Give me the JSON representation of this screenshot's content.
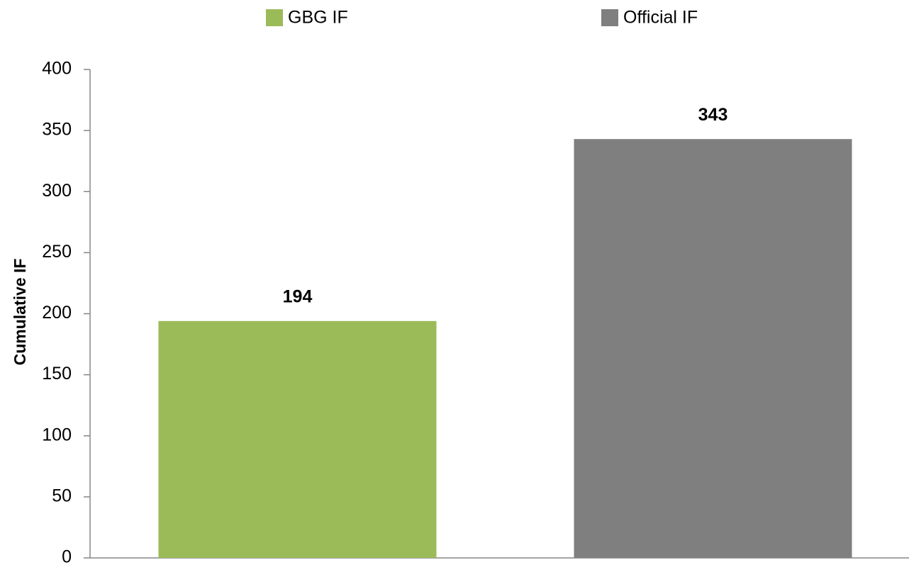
{
  "chart_data": {
    "type": "bar",
    "ylabel": "Cumulative IF",
    "categories": [
      null
    ],
    "series": [
      {
        "name": "GBG IF",
        "color": "#9bbb59",
        "values": [
          194
        ]
      },
      {
        "name": "Official IF",
        "color": "#7f7f7f",
        "values": [
          343
        ]
      }
    ],
    "ylim": [
      0,
      400
    ],
    "yticks": [
      0,
      50,
      100,
      150,
      200,
      250,
      300,
      350,
      400
    ],
    "grid": false,
    "legend": "top"
  }
}
